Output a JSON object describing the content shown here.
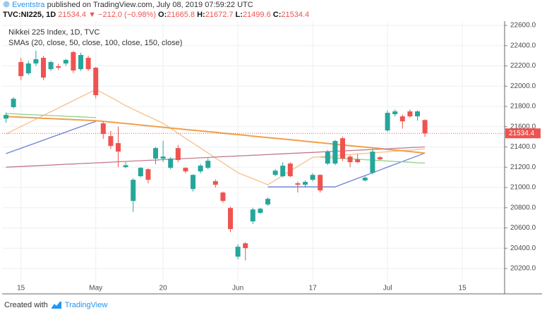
{
  "header": {
    "author": "Eventstra",
    "published": "published on TradingView.com, July 08, 2019 07:59:22 UTC",
    "symbol": "TVC:NI225, 1D",
    "last": "21534.4",
    "change": "▼ −212.0 (−0.98%)",
    "ohlc": [
      {
        "label": "O:",
        "value": "21665.8"
      },
      {
        "label": "H:",
        "value": "21672.7"
      },
      {
        "label": "L:",
        "value": "21499.6"
      },
      {
        "label": "C:",
        "value": "21534.4"
      }
    ]
  },
  "chart_data": {
    "type": "candlestick",
    "title": "Nikkei 225 Index, 1D, TVC",
    "subtitle": "SMAs (20, close, 50, close, 100, close, 150, close)",
    "categories": [
      null,
      null,
      "15",
      null,
      null,
      null,
      null,
      null,
      null,
      null,
      null,
      null,
      "May",
      null,
      null,
      null,
      null,
      null,
      null,
      null,
      null,
      "20",
      null,
      null,
      null,
      null,
      null,
      null,
      null,
      null,
      null,
      "Jun",
      null,
      null,
      null,
      null,
      null,
      null,
      null,
      null,
      null,
      "17",
      null,
      null,
      null,
      null,
      null,
      null,
      null,
      null,
      null,
      "Jul",
      null,
      null,
      null,
      null,
      null,
      null,
      null,
      null,
      null,
      "15",
      null,
      null,
      null,
      null,
      null
    ],
    "open": [
      21680,
      21793,
      22238,
      22127,
      22224,
      22280,
      22168,
      22196,
      22224,
      22336,
      22168,
      22280,
      22182,
      21633,
      21507,
      21438,
      21201,
      20867,
      21111,
      21180,
      21285,
      21285,
      21194,
      21389,
      21194,
      20985,
      21159,
      21194,
      21062,
      20950,
      20797,
      20317,
      20449,
      20665,
      20749,
      20832,
      21124,
      21111,
      21236,
      21041,
      21027,
      21076,
      21124,
      21236,
      21236,
      21486,
      21305,
      21278,
      21069,
      21145,
      21298,
      21563,
      21723,
      21702,
      21751,
      21702,
      21665.8,
      null,
      null,
      null,
      null,
      null,
      null,
      null,
      null,
      null,
      null
    ],
    "high": [
      21740,
      21890,
      22280,
      22250,
      22350,
      22300,
      22250,
      22220,
      22270,
      22350,
      22330,
      22300,
      22190,
      21650,
      21560,
      21600,
      21250,
      21090,
      21200,
      21190,
      21400,
      21460,
      21300,
      21420,
      21200,
      21130,
      21230,
      21290,
      21080,
      20960,
      20810,
      20440,
      20460,
      20800,
      20800,
      20900,
      21180,
      21250,
      21250,
      21060,
      21070,
      21140,
      21130,
      21370,
      21470,
      21500,
      21320,
      21330,
      21110,
      21380,
      21310,
      21760,
      21770,
      21720,
      21770,
      21760,
      21672.7,
      null,
      null,
      null,
      null,
      null,
      null,
      null,
      null,
      null,
      null
    ],
    "low": [
      21640,
      21780,
      22060,
      22110,
      22200,
      22060,
      22150,
      22160,
      22200,
      22130,
      22150,
      22150,
      21880,
      21480,
      21380,
      21200,
      21190,
      20760,
      21100,
      21040,
      21230,
      21250,
      21180,
      21250,
      21140,
      20960,
      21140,
      21180,
      21000,
      20850,
      20560,
      20290,
      20280,
      20640,
      20740,
      20820,
      21110,
      21100,
      21100,
      20950,
      21000,
      21060,
      20950,
      21220,
      21220,
      21260,
      21200,
      21240,
      21060,
      21130,
      21270,
      21550,
      21700,
      21580,
      21690,
      21660,
      21499.6,
      null,
      null,
      null,
      null,
      null,
      null,
      null,
      null,
      null,
      null
    ],
    "close": [
      21716,
      21876,
      22099,
      22224,
      22266,
      22085,
      22238,
      22182,
      22259,
      22155,
      22308,
      22168,
      21911,
      21528,
      21410,
      21354,
      21220,
      21076,
      21194,
      21076,
      21389,
      21305,
      21285,
      21271,
      21159,
      21124,
      21215,
      21264,
      21027,
      20867,
      20589,
      20415,
      20401,
      20783,
      20790,
      20888,
      21166,
      21215,
      21111,
      21027,
      21055,
      21124,
      20971,
      21354,
      21459,
      21285,
      21250,
      21250,
      21097,
      21354,
      21278,
      21737,
      21751,
      21653,
      21702,
      21751,
      21534.4,
      null,
      null,
      null,
      null,
      null,
      null,
      null,
      null,
      null,
      null
    ],
    "up_color": "#26a69a",
    "down_color": "#ef5350",
    "overlays": [
      {
        "color": "#6f7fd4",
        "values": [
          21334,
          21361,
          21387,
          21414,
          21440,
          21467,
          21494,
          21520,
          21547,
          21574,
          21600,
          21627,
          21653,
          null,
          null,
          null,
          null,
          null,
          null,
          null,
          null,
          null,
          null,
          null,
          null,
          null,
          null,
          null,
          null,
          null,
          null,
          null,
          null,
          null,
          null,
          21006,
          21006,
          21006,
          21006,
          21006,
          21006,
          21006,
          21006,
          21006,
          21006,
          21034,
          21062,
          21090,
          21118,
          21145,
          21173,
          21201,
          21229,
          21256,
          21284,
          21312,
          21340,
          null,
          null,
          null,
          null,
          null,
          null,
          null,
          null,
          null,
          null
        ]
      },
      {
        "color": "#f6c08e",
        "values": [
          21528,
          21565,
          21601,
          21638,
          21674,
          21711,
          21748,
          21784,
          21821,
          21857,
          21894,
          21930,
          21967,
          21930,
          21890,
          21850,
          21807,
          21772,
          21737,
          21702,
          21668,
          21633,
          21584,
          21535,
          21486,
          21438,
          21389,
          21340,
          21291,
          21243,
          21194,
          21145,
          21116,
          21087,
          21057,
          21027,
          21072,
          21117,
          21163,
          21208,
          21253,
          21298,
          21303,
          21309,
          21314,
          21320,
          21325,
          21331,
          21336,
          21342,
          21347,
          21353,
          21358,
          21364,
          21369,
          21375,
          21380,
          null,
          null,
          null,
          null,
          null,
          null,
          null,
          null,
          null,
          null
        ]
      },
      {
        "color": "#f0a04b",
        "values": [
          21700,
          21697,
          21693,
          21690,
          21687,
          21683,
          21680,
          21677,
          21673,
          21670,
          21667,
          21663,
          21660,
          21653,
          21645,
          21638,
          21631,
          21624,
          21616,
          21609,
          21602,
          21594,
          21587,
          21580,
          21573,
          21565,
          21558,
          21551,
          21544,
          21536,
          21529,
          21522,
          21515,
          21507,
          21500,
          21493,
          21485,
          21478,
          21471,
          21464,
          21456,
          21449,
          21442,
          21435,
          21427,
          21420,
          21413,
          21405,
          21398,
          21391,
          21384,
          21376,
          21369,
          21362,
          21355,
          21347,
          21340,
          null,
          null,
          null,
          null,
          null,
          null,
          null,
          null,
          null,
          null
        ]
      },
      {
        "color": "#8fcf8a",
        "values": [
          21730,
          21727,
          21723,
          21720,
          21717,
          21713,
          21710,
          21707,
          21703,
          21700,
          21697,
          21693,
          21690,
          null,
          null,
          null,
          null,
          null,
          null,
          null,
          null,
          null,
          null,
          null,
          null,
          null,
          null,
          null,
          null,
          null,
          null,
          null,
          null,
          null,
          null,
          null,
          null,
          null,
          null,
          null,
          null,
          null,
          21300,
          21296,
          21291,
          21287,
          21283,
          21279,
          21274,
          21270,
          21266,
          21261,
          21257,
          21253,
          21249,
          21244,
          21240,
          null,
          null,
          null,
          null,
          null,
          null,
          null,
          null,
          null,
          null
        ]
      },
      {
        "color": "#c47a8e",
        "values": [
          21200,
          21204,
          21207,
          21211,
          21214,
          21218,
          21221,
          21225,
          21229,
          21232,
          21236,
          21239,
          21243,
          21246,
          21250,
          21254,
          21257,
          21261,
          21264,
          21268,
          21271,
          21275,
          21279,
          21282,
          21286,
          21289,
          21293,
          21296,
          21300,
          21304,
          21307,
          21311,
          21314,
          21318,
          21321,
          21325,
          21329,
          21332,
          21336,
          21339,
          21343,
          21346,
          21350,
          21354,
          21357,
          21361,
          21364,
          21368,
          21371,
          21375,
          21379,
          21382,
          21386,
          21389,
          21393,
          21396,
          21400,
          null,
          null,
          null,
          null,
          null,
          null,
          null,
          null,
          null,
          null
        ]
      }
    ],
    "last_price": 21534.4,
    "ylim": [
      20068,
      22642
    ],
    "yticks": [
      {
        "value": 20200,
        "label": "20200.0"
      },
      {
        "value": 20400,
        "label": "20400.0"
      },
      {
        "value": 20600,
        "label": "20600.0"
      },
      {
        "value": 20800,
        "label": "20800.0"
      },
      {
        "value": 21000,
        "label": "21000.0"
      },
      {
        "value": 21200,
        "label": "21200.0"
      },
      {
        "value": 21400,
        "label": "21400.0"
      },
      {
        "value": 21600,
        "label": "21600.0"
      },
      {
        "value": 21800,
        "label": "21800.0"
      },
      {
        "value": 22000,
        "label": "22000.0"
      },
      {
        "value": 22200,
        "label": "22200.0"
      },
      {
        "value": 22400,
        "label": "22400.0"
      },
      {
        "value": 22600,
        "label": "22600.0"
      }
    ],
    "grid": true
  },
  "footer": {
    "prefix": "Created with",
    "brand": "TradingView"
  }
}
